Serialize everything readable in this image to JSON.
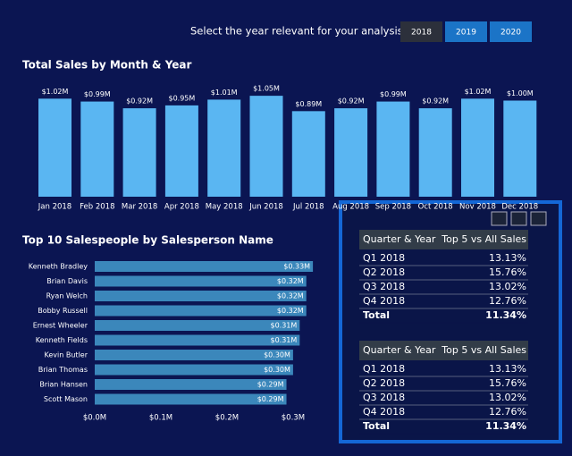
{
  "slicer": {
    "prompt": "Select the year relevant for your analysis",
    "options": [
      "2018",
      "2019",
      "2020"
    ],
    "selected": [
      1,
      2
    ]
  },
  "chart_data": [
    {
      "type": "bar",
      "title": "Total Sales by Month & Year",
      "categories": [
        "Jan 2018",
        "Feb 2018",
        "Mar 2018",
        "Apr 2018",
        "May 2018",
        "Jun 2018",
        "Jul 2018",
        "Aug 2018",
        "Sep 2018",
        "Oct 2018",
        "Nov 2018",
        "Dec 2018"
      ],
      "values": [
        1.02,
        0.99,
        0.92,
        0.95,
        1.01,
        1.05,
        0.89,
        0.92,
        0.99,
        0.92,
        1.02,
        1.0
      ],
      "value_labels": [
        "$1.02M",
        "$0.99M",
        "$0.92M",
        "$0.95M",
        "$1.01M",
        "$1.05M",
        "$0.89M",
        "$0.92M",
        "$0.99M",
        "$0.92M",
        "$1.02M",
        "$1.00M"
      ],
      "color": "#5ab6f2"
    },
    {
      "type": "hbar",
      "title": "Top 10 Salespeople by Salesperson Name",
      "categories": [
        "Kenneth Bradley",
        "Brian Davis",
        "Ryan Welch",
        "Bobby Russell",
        "Ernest Wheeler",
        "Kenneth Fields",
        "Kevin Butler",
        "Brian Thomas",
        "Brian Hansen",
        "Scott Mason"
      ],
      "values": [
        0.33,
        0.32,
        0.32,
        0.32,
        0.31,
        0.31,
        0.3,
        0.3,
        0.29,
        0.29
      ],
      "value_labels": [
        "$0.33M",
        "$0.32M",
        "$0.32M",
        "$0.32M",
        "$0.31M",
        "$0.31M",
        "$0.30M",
        "$0.30M",
        "$0.29M",
        "$0.29M"
      ],
      "color": "#3b87bb",
      "xlim": [
        0,
        0.34
      ],
      "xticks": [
        {
          "value": 0,
          "label": "$0.0M"
        },
        {
          "value": 0.1,
          "label": "$0.1M"
        },
        {
          "value": 0.2,
          "label": "$0.2M"
        },
        {
          "value": 0.3,
          "label": "$0.3M"
        }
      ]
    }
  ],
  "tables": [
    {
      "columns": [
        "Quarter & Year",
        "Top 5 vs All Sales"
      ],
      "rows": [
        [
          "Q1 2018",
          "13.13%"
        ],
        [
          "Q2 2018",
          "15.76%"
        ],
        [
          "Q3 2018",
          "13.02%"
        ],
        [
          "Q4 2018",
          "12.76%"
        ]
      ],
      "total": [
        "Total",
        "11.34%"
      ]
    },
    {
      "columns": [
        "Quarter & Year",
        "Top 5 vs All Sales"
      ],
      "rows": [
        [
          "Q1 2018",
          "13.13%"
        ],
        [
          "Q2 2018",
          "15.76%"
        ],
        [
          "Q3 2018",
          "13.02%"
        ],
        [
          "Q4 2018",
          "12.76%"
        ]
      ],
      "total": [
        "Total",
        "11.34%"
      ]
    }
  ]
}
